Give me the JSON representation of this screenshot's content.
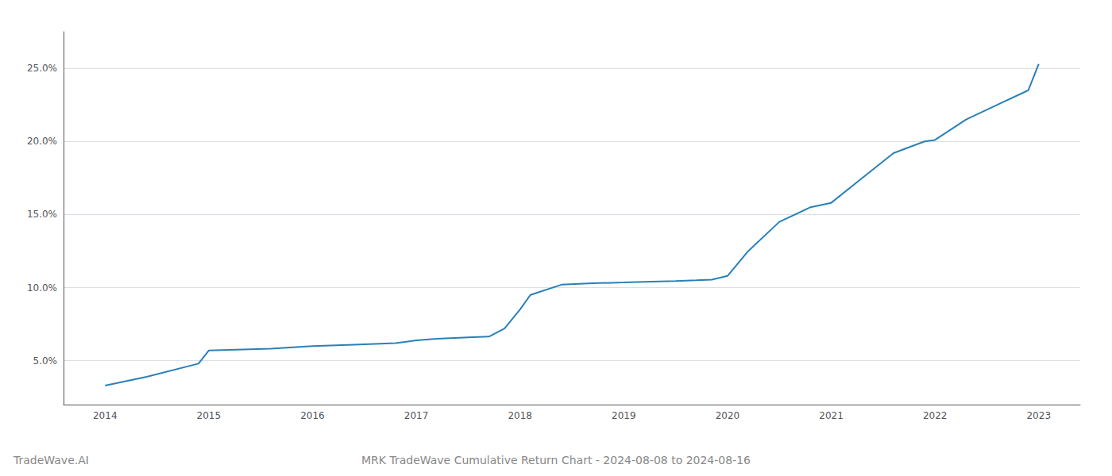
{
  "chart_data": {
    "type": "line",
    "title": "MRK TradeWave Cumulative Return Chart - 2024-08-08 to 2024-08-16",
    "annotations": [
      "TradeWave.AI"
    ],
    "x": [
      2014.0,
      2014.4,
      2014.9,
      2015.0,
      2015.2,
      2015.6,
      2016.0,
      2016.4,
      2016.8,
      2017.0,
      2017.2,
      2017.5,
      2017.7,
      2017.85,
      2018.0,
      2018.1,
      2018.4,
      2018.7,
      2019.0,
      2019.2,
      2019.5,
      2019.7,
      2019.85,
      2020.0,
      2020.2,
      2020.5,
      2020.8,
      2021.0,
      2021.3,
      2021.6,
      2021.9,
      2022.0,
      2022.3,
      2022.6,
      2022.9,
      2023.0
    ],
    "values": [
      3.3,
      3.9,
      4.8,
      5.7,
      5.75,
      5.82,
      6.0,
      6.1,
      6.2,
      6.4,
      6.5,
      6.6,
      6.65,
      7.2,
      8.5,
      9.5,
      10.2,
      10.3,
      10.35,
      10.4,
      10.45,
      10.5,
      10.55,
      10.8,
      12.5,
      14.5,
      15.5,
      15.8,
      17.5,
      19.2,
      20.0,
      20.1,
      21.5,
      22.5,
      23.5,
      25.3
    ],
    "color": "#2980b9",
    "xlim": [
      2013.6,
      2023.4
    ],
    "xticks": [
      2014,
      2015,
      2016,
      2017,
      2018,
      2019,
      2020,
      2021,
      2022,
      2023
    ],
    "ylim": [
      2.0,
      27.5
    ],
    "yticks": [
      {
        "value": 5.0,
        "label": "5.0%"
      },
      {
        "value": 10.0,
        "label": "10.0%"
      },
      {
        "value": 15.0,
        "label": "15.0%"
      },
      {
        "value": 20.0,
        "label": "20.0%"
      },
      {
        "value": 25.0,
        "label": "25.0%"
      }
    ],
    "grid": true
  }
}
